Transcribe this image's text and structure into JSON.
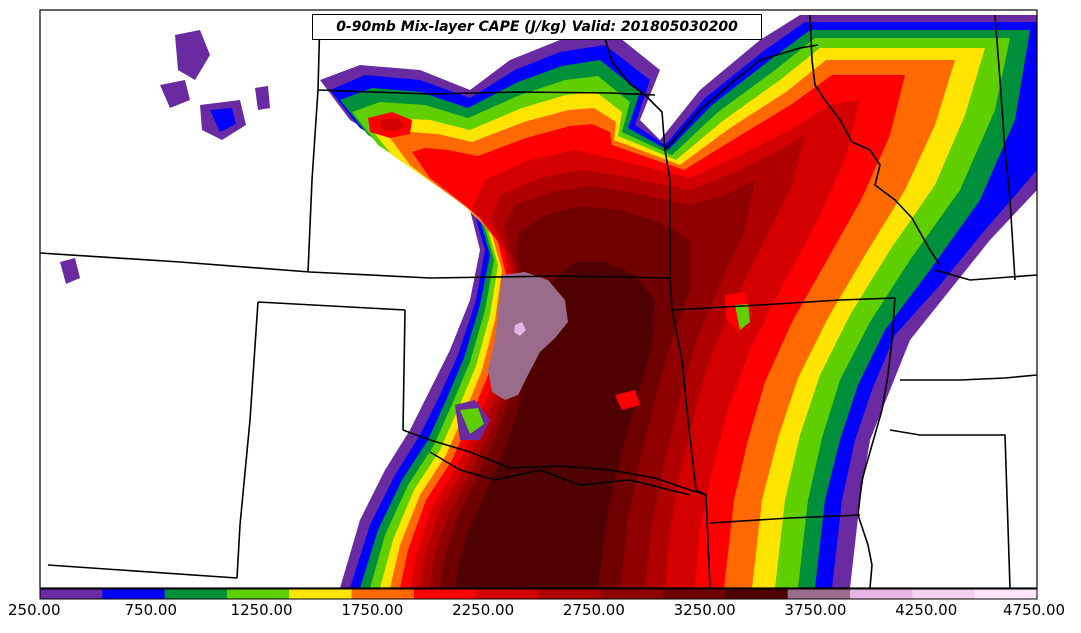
{
  "title": "0-90mb Mix-layer CAPE (J/kg) Valid: 201805030200",
  "colorbar": {
    "colors": [
      "#6a2aa1",
      "#0000ff",
      "#008f3a",
      "#5fcf00",
      "#ffe400",
      "#ff6a00",
      "#ff0000",
      "#d40000",
      "#b00000",
      "#900000",
      "#700000",
      "#4f0000",
      "#9a6b8a",
      "#e6b4e6",
      "#f5d0f0",
      "#ffe4fb"
    ],
    "tick_labels": [
      "250.00",
      "750.00",
      "1250.00",
      "1750.00",
      "2250.00",
      "2750.00",
      "3250.00",
      "3750.00",
      "4250.00",
      "4750.00"
    ]
  },
  "legend_colors": {
    "land": "#ffffff",
    "border": "#000000"
  }
}
